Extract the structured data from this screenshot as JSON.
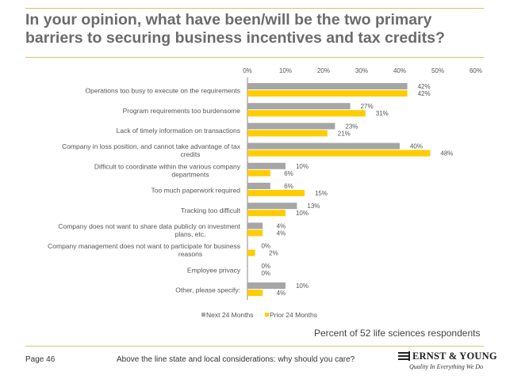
{
  "title": "In your opinion, what have been/will be the two primary barriers to securing business incentives and tax credits?",
  "respondents_note": "Percent of 52 life sciences respondents",
  "footer": {
    "page": "Page 46",
    "note": "Above the line state and local considerations: why should you care?"
  },
  "logo": {
    "name": "ERNST & YOUNG",
    "tagline": "Quality In Everything We Do"
  },
  "colors": {
    "next": "#a6a6a6",
    "prior": "#ffcc00",
    "rule": "#d8c36a"
  },
  "chart_data": {
    "type": "bar",
    "orientation": "horizontal",
    "categories": [
      "Operations too busy to execute on the requirements",
      "Program requirements too burdensome",
      "Lack of timely information on transactions",
      "Company in loss position, and cannot take advantage of tax credits",
      "Difficult to coordinate within the various company departments",
      "Too much paperwork required",
      "Tracking too difficult",
      "Company does not want to share data publicly on investment plans, etc.",
      "Company management does not want to participate for business reasons",
      "Employee privacy",
      "Other, please specify:"
    ],
    "series": [
      {
        "name": "Next 24 Months",
        "values": [
          42,
          27,
          23,
          40,
          10,
          6,
          13,
          4,
          0,
          0,
          10
        ]
      },
      {
        "name": "Prior 24 Months",
        "values": [
          42,
          31,
          21,
          48,
          6,
          15,
          10,
          4,
          2,
          0,
          4
        ]
      }
    ],
    "xlim": [
      0,
      60
    ],
    "xticks": [
      "0%",
      "10%",
      "20%",
      "30%",
      "40%",
      "50%",
      "60%"
    ],
    "value_suffix": "%",
    "axis_position": "top",
    "legend_position": "bottom",
    "grid": false
  }
}
